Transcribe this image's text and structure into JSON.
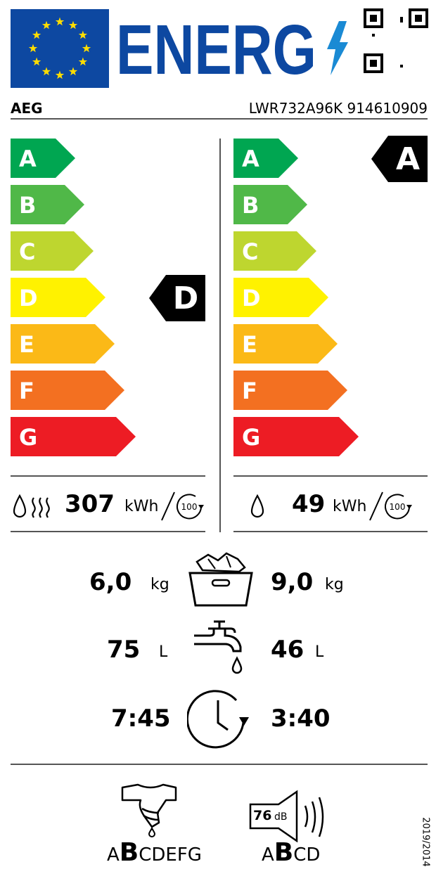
{
  "header": {
    "title": "ENERG",
    "brand": "AEG",
    "model": "LWR732A96K 914610909"
  },
  "colors": {
    "eu_blue": "#0d48a1",
    "star": "#ffdd00",
    "scale": [
      "#00a651",
      "#50b848",
      "#bed62f",
      "#fff200",
      "#fbb917",
      "#f37021",
      "#ed1c24"
    ]
  },
  "scale_classes": [
    "A",
    "B",
    "C",
    "D",
    "E",
    "F",
    "G"
  ],
  "left": {
    "rating": "D",
    "energy_value": "307",
    "energy_unit": "kWh",
    "cycles": "100",
    "icons": [
      "water-drop-icon",
      "heat-waves-icon"
    ]
  },
  "right": {
    "rating": "A",
    "energy_value": "49",
    "energy_unit": "kWh",
    "cycles": "100",
    "icons": [
      "water-drop-icon"
    ]
  },
  "capacity": {
    "left": "6,0",
    "right": "9,0",
    "unit": "kg"
  },
  "water": {
    "left": "75",
    "right": "46",
    "unit": "L"
  },
  "duration": {
    "left": "7:45",
    "right": "3:40"
  },
  "spin": {
    "pre": "A",
    "selected": "B",
    "post": "CDEFG"
  },
  "noise": {
    "value": "76",
    "unit": "dB",
    "pre": "A",
    "selected": "B",
    "post": "CD"
  },
  "regulation": "2019/2014"
}
